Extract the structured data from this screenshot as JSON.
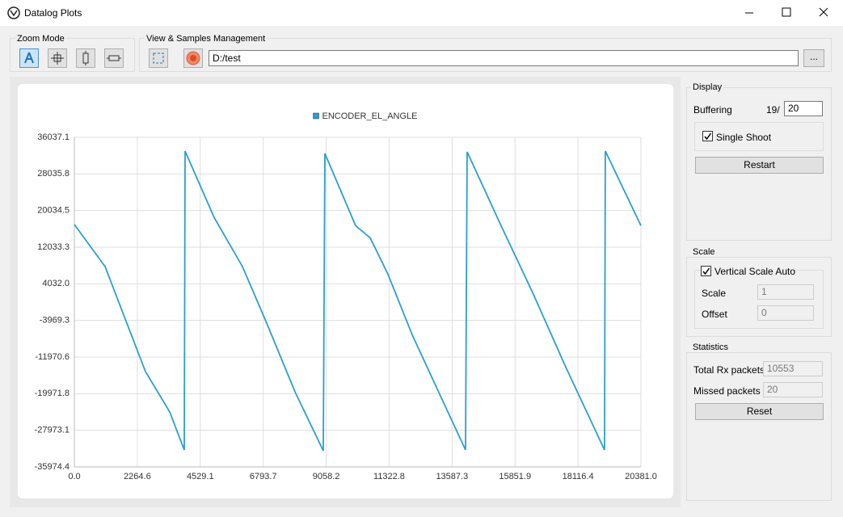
{
  "window": {
    "title": "Datalog Plots"
  },
  "toolbar": {
    "zoom_mode": "Zoom Mode",
    "view_samples": "View & Samples Management",
    "path": "D:/test",
    "browse": "..."
  },
  "chart_data": {
    "type": "line",
    "x": [
      0,
      1105,
      2558,
      3431,
      3954,
      3983,
      5030,
      6047,
      6919,
      7937,
      8954,
      9012,
      10117,
      10640,
      11280,
      12152,
      13024,
      14071,
      14129,
      15350,
      16513,
      17676,
      19071,
      19100,
      20381
    ],
    "series": [
      {
        "name": "ENCODER_EL_ANGLE",
        "color": "#2a9fd0",
        "values": [
          17000,
          7800,
          -15150,
          -23970,
          -32270,
          33040,
          18500,
          7800,
          -4560,
          -19560,
          -32450,
          32510,
          16730,
          14090,
          6140,
          -7100,
          -18560,
          -32270,
          32860,
          16740,
          1740,
          -14150,
          -32270,
          33040,
          16740
        ]
      }
    ],
    "xlim": [
      0,
      20381
    ],
    "ylim": [
      -35974.4,
      36037.1
    ],
    "xticks": [
      {
        "value": 0,
        "label": "0.0"
      },
      2264.6,
      4529.1,
      6793.7,
      9058.2,
      11322.8,
      13587.3,
      15851.9,
      18116.4,
      {
        "value": 20381,
        "label": "20381.0"
      }
    ],
    "yticks": [
      -35974.4,
      -27973.1,
      -19971.8,
      -11970.6,
      -3969.3,
      {
        "value": 4032,
        "label": "4032.0"
      },
      12033.3,
      20034.5,
      28035.8,
      36037.1
    ],
    "grid": true,
    "legend": "top"
  },
  "display": {
    "title": "Display",
    "buffering_label": "Buffering",
    "buffered": "19/",
    "buffer_size": 20,
    "single_shoot": "Single Shoot",
    "restart": "Restart"
  },
  "scale": {
    "title": "Scale",
    "vertical_auto": "Vertical Scale Auto",
    "scale_label": "Scale",
    "scale_value": 1,
    "offset_label": "Offset",
    "offset_value": 0
  },
  "statistics": {
    "title": "Statistics",
    "total_rx_label": "Total Rx packets",
    "total_rx": 10553,
    "missed_label": "Missed packets",
    "missed": 20,
    "reset": "Reset"
  }
}
